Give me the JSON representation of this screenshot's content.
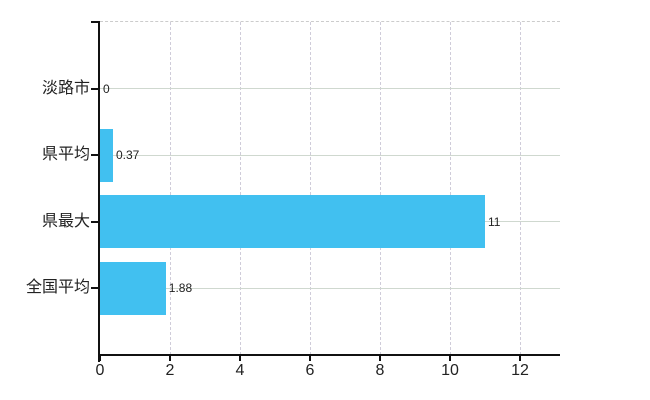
{
  "chart_data": {
    "type": "bar",
    "orientation": "horizontal",
    "categories": [
      "淡路市",
      "県平均",
      "県最大",
      "全国平均"
    ],
    "values": [
      0,
      0.37,
      11,
      1.88
    ],
    "value_labels": [
      "0",
      "0.37",
      "11",
      "1.88"
    ],
    "xticks": [
      0,
      2,
      4,
      6,
      8,
      10,
      12
    ],
    "xtick_labels": [
      "0",
      "2",
      "4",
      "6",
      "8",
      "10",
      "12"
    ],
    "xlim": [
      0,
      13.14
    ],
    "grid": "on",
    "gridline_style": {
      "horizontal": "solid",
      "vertical": "dashed",
      "top_border": "dashed"
    },
    "legend": "none",
    "colors": {
      "bar": "#41c0f0",
      "axis": "#111111",
      "text": "#222222",
      "h_gridline": "#cfd8cf",
      "v_gridline": "#cfccd9",
      "top_border": "#cccccc",
      "background": "#ffffff"
    }
  }
}
